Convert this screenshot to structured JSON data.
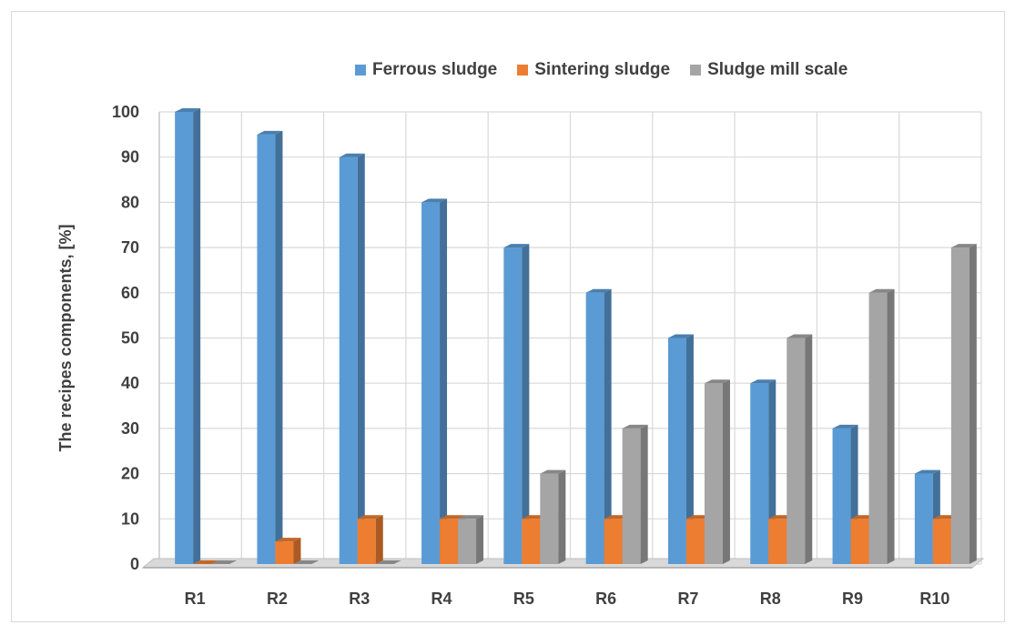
{
  "chart_data": {
    "type": "bar",
    "title": "",
    "xlabel": "",
    "ylabel": "The recipes components, [%]",
    "ylim": [
      0,
      100
    ],
    "yticks": [
      0,
      10,
      20,
      30,
      40,
      50,
      60,
      70,
      80,
      90,
      100
    ],
    "grid": true,
    "legend_position": "top",
    "categories": [
      "R1",
      "R2",
      "R3",
      "R4",
      "R5",
      "R6",
      "R7",
      "R8",
      "R9",
      "R10"
    ],
    "series": [
      {
        "name": "Ferrous sludge",
        "color": "#5b9bd5",
        "values": [
          100,
          95,
          90,
          80,
          70,
          60,
          50,
          40,
          30,
          20
        ]
      },
      {
        "name": "Sintering sludge",
        "color": "#ed7d31",
        "values": [
          0,
          5,
          10,
          10,
          10,
          10,
          10,
          10,
          10,
          10
        ]
      },
      {
        "name": "Sludge mill scale",
        "color": "#a5a5a5",
        "values": [
          0,
          0,
          0,
          10,
          20,
          30,
          40,
          50,
          60,
          70
        ]
      }
    ]
  }
}
